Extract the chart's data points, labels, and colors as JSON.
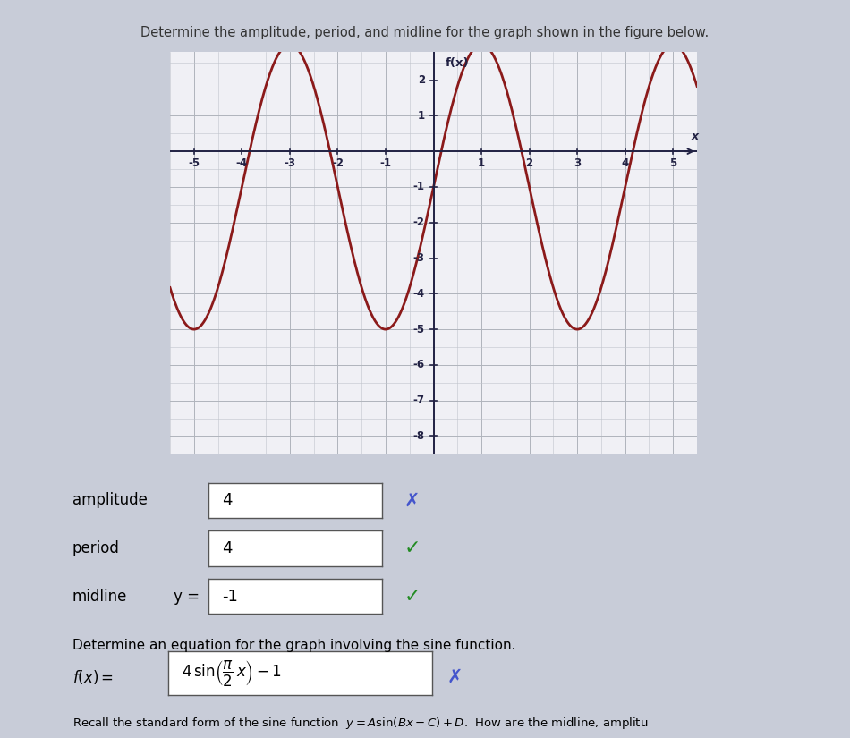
{
  "title": "Determine the amplitude, period, and midline for the graph shown in the figure below.",
  "graph_title": "f(x)",
  "x_label": "x",
  "xlim": [
    -5.5,
    5.5
  ],
  "ylim": [
    -8.5,
    2.8
  ],
  "curve_color": "#8B1A1A",
  "curve_linewidth": 2.0,
  "amplitude": 4,
  "period": 4,
  "midline": -1,
  "grid_color": "#c0c4cc",
  "grid_major_color": "#b0b4bc",
  "bg_color": "#e8eaf0",
  "graph_bg": "#f0f0f5",
  "fig_bg_color": "#c8ccd8",
  "answer_amplitude": "4",
  "answer_period": "4",
  "answer_midline": "-1",
  "amplitude_correct": false,
  "period_correct": true,
  "midline_correct": true,
  "eq_correct": false,
  "title_color": "#333333",
  "axis_color": "#222244",
  "tick_color": "#222244"
}
